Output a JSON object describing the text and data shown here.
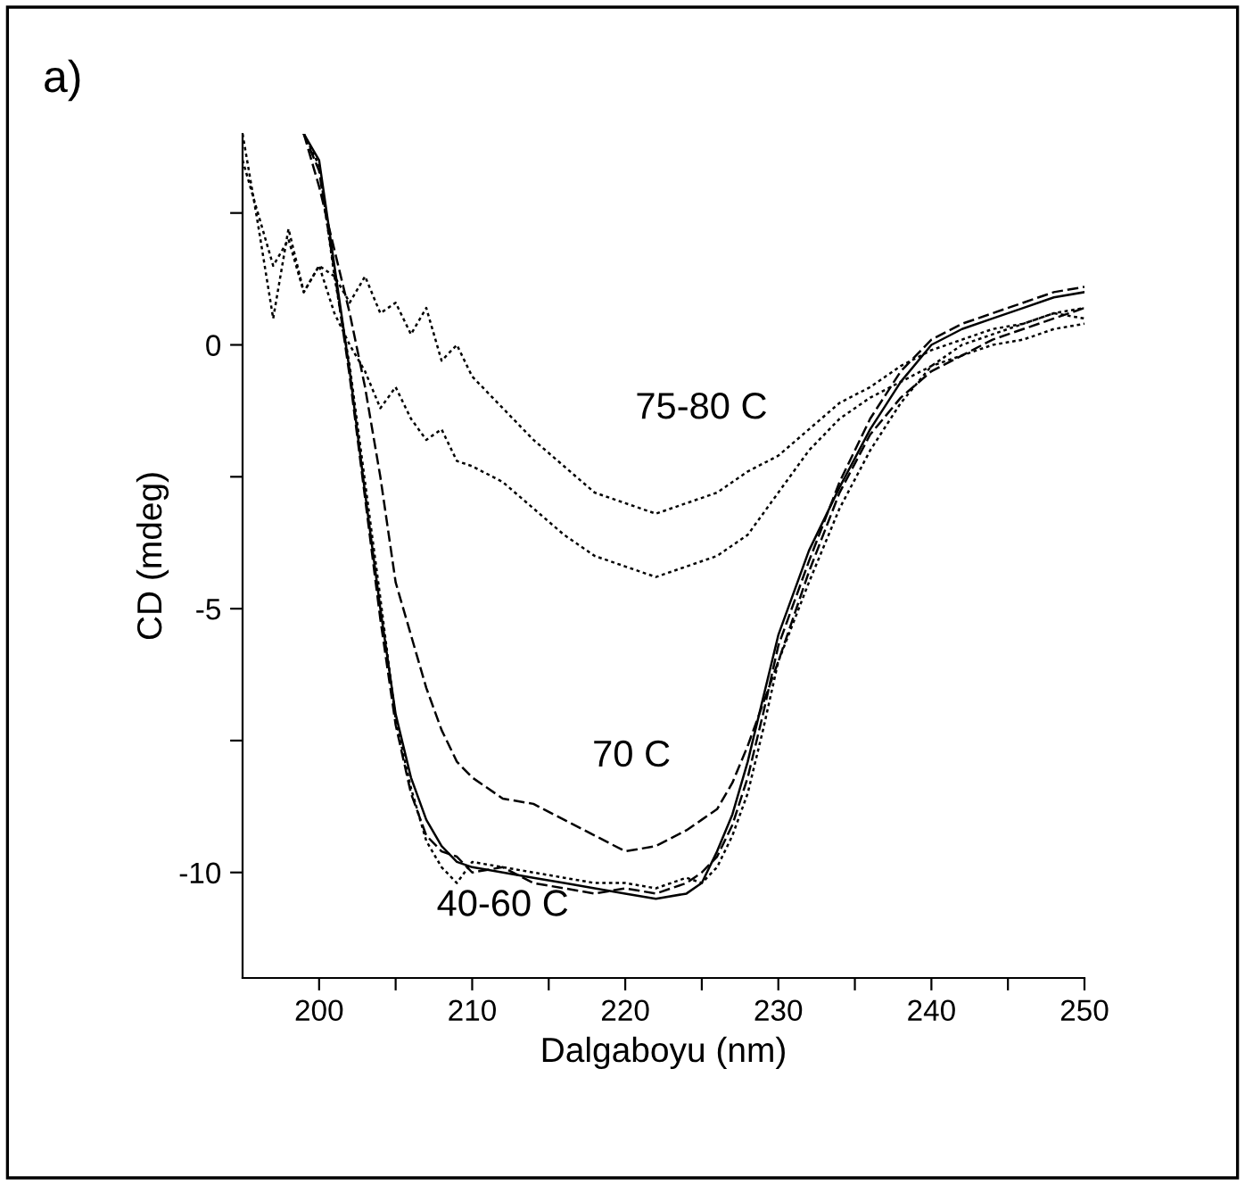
{
  "chart_data": {
    "type": "line",
    "title": "a)",
    "xlabel": "Dalgaboyu (nm)",
    "ylabel": "CD (mdeg)",
    "xlim": [
      195,
      250
    ],
    "ylim": [
      -12,
      4
    ],
    "xticks": [
      200,
      {
        "value": 205,
        "label": null
      },
      210,
      {
        "value": 215,
        "label": null
      },
      220,
      {
        "value": 225,
        "label": null
      },
      230,
      {
        "value": 235,
        "label": null
      },
      240,
      {
        "value": 245,
        "label": null
      },
      250
    ],
    "yticks": [
      -10,
      {
        "value": -7.5,
        "label": null
      },
      -5,
      {
        "value": -2.5,
        "label": null
      },
      0,
      {
        "value": 2.5,
        "label": null
      }
    ],
    "grid": false,
    "legend": false,
    "marker": "none",
    "annotations": [
      "75-80 C",
      "70 C",
      "40-60 C"
    ],
    "x": [
      199,
      200,
      201,
      202,
      203,
      204,
      205,
      206,
      207,
      208,
      209,
      210,
      212,
      214,
      216,
      218,
      220,
      222,
      224,
      225,
      226,
      227,
      228,
      229,
      230,
      232,
      234,
      236,
      238,
      240,
      242,
      244,
      246,
      248,
      250
    ],
    "series": [
      {
        "color": "#000000",
        "line_style": "solid",
        "values": [
          4.0,
          3.5,
          1.5,
          -0.5,
          -2.8,
          -5.0,
          -7.0,
          -8.2,
          -9.0,
          -9.5,
          -9.8,
          -9.9,
          -10.0,
          -10.1,
          -10.2,
          -10.3,
          -10.4,
          -10.5,
          -10.4,
          -10.2,
          -9.6,
          -8.9,
          -7.9,
          -6.7,
          -5.5,
          -3.9,
          -2.7,
          -1.6,
          -0.7,
          0.0,
          0.3,
          0.5,
          0.7,
          0.9,
          1.0
        ]
      },
      {
        "color": "#000000",
        "line_style": "dashed",
        "values": [
          4.0,
          3.3,
          1.4,
          -0.6,
          -2.9,
          -5.2,
          -7.2,
          -8.5,
          -9.3,
          -9.6,
          -9.7,
          -10.0,
          -9.9,
          -10.2,
          -10.3,
          -10.4,
          -10.3,
          -10.4,
          -10.2,
          -10.0,
          -9.7,
          -9.1,
          -8.2,
          -7.0,
          -5.7,
          -4.1,
          -2.6,
          -1.4,
          -0.5,
          0.1,
          0.4,
          0.6,
          0.8,
          1.0,
          1.1
        ]
      },
      {
        "color": "#000000",
        "line_style": "dotted",
        "values": [
          4.0,
          3.4,
          1.3,
          -0.4,
          -2.6,
          -4.8,
          -7.1,
          -8.4,
          -9.4,
          -9.9,
          -10.2,
          -9.8,
          -9.9,
          -10.0,
          -10.1,
          -10.2,
          -10.2,
          -10.3,
          -10.1,
          -10.2,
          -9.9,
          -9.3,
          -8.5,
          -7.3,
          -6.0,
          -4.5,
          -3.1,
          -2.0,
          -1.1,
          -0.4,
          0.0,
          0.2,
          0.4,
          0.6,
          0.5
        ]
      },
      {
        "color": "#000000",
        "line_style": "dashed",
        "values": [
          4.0,
          3.0,
          1.8,
          0.6,
          -0.8,
          -2.5,
          -4.5,
          -5.5,
          -6.5,
          -7.3,
          -7.9,
          -8.2,
          -8.6,
          -8.7,
          -9.0,
          -9.3,
          -9.6,
          -9.5,
          -9.2,
          -9.0,
          -8.8,
          -8.3,
          -7.6,
          -6.8,
          -6.0,
          -4.3,
          -2.8,
          -1.7,
          -1.0,
          -0.5,
          -0.2,
          0.1,
          0.3,
          0.5,
          0.7
        ]
      },
      {
        "color": "#000000",
        "line_style": "dotted",
        "x": [
          195,
          196,
          197,
          198,
          199,
          200,
          201,
          202,
          203,
          204,
          205,
          206,
          207,
          208,
          209,
          210,
          212,
          214,
          216,
          218,
          220,
          222,
          224,
          226,
          228,
          230,
          232,
          234,
          236,
          238,
          240,
          242,
          244,
          246,
          248,
          250
        ],
        "values": [
          3.5,
          2.5,
          1.5,
          2.0,
          1.0,
          1.5,
          1.3,
          0.8,
          1.3,
          0.6,
          0.8,
          0.2,
          0.7,
          -0.3,
          0.0,
          -0.6,
          -1.2,
          -1.8,
          -2.3,
          -2.8,
          -3.0,
          -3.2,
          -3.0,
          -2.8,
          -2.4,
          -2.1,
          -1.6,
          -1.1,
          -0.8,
          -0.4,
          -0.1,
          0.1,
          0.3,
          0.4,
          0.6,
          0.7
        ]
      },
      {
        "color": "#000000",
        "line_style": "dotted",
        "x": [
          195,
          196,
          197,
          198,
          199,
          200,
          201,
          202,
          203,
          204,
          205,
          206,
          207,
          208,
          209,
          210,
          212,
          214,
          216,
          218,
          220,
          222,
          224,
          226,
          228,
          230,
          232,
          234,
          236,
          238,
          240,
          242,
          244,
          246,
          248,
          250
        ],
        "values": [
          4.0,
          2.3,
          0.5,
          2.2,
          1.0,
          1.5,
          0.6,
          0.0,
          -0.5,
          -1.2,
          -0.8,
          -1.4,
          -1.8,
          -1.6,
          -2.2,
          -2.3,
          -2.6,
          -3.1,
          -3.6,
          -4.0,
          -4.2,
          -4.4,
          -4.2,
          -4.0,
          -3.6,
          -2.8,
          -2.0,
          -1.4,
          -1.0,
          -0.7,
          -0.4,
          -0.2,
          0.0,
          0.1,
          0.3,
          0.4
        ]
      }
    ]
  }
}
